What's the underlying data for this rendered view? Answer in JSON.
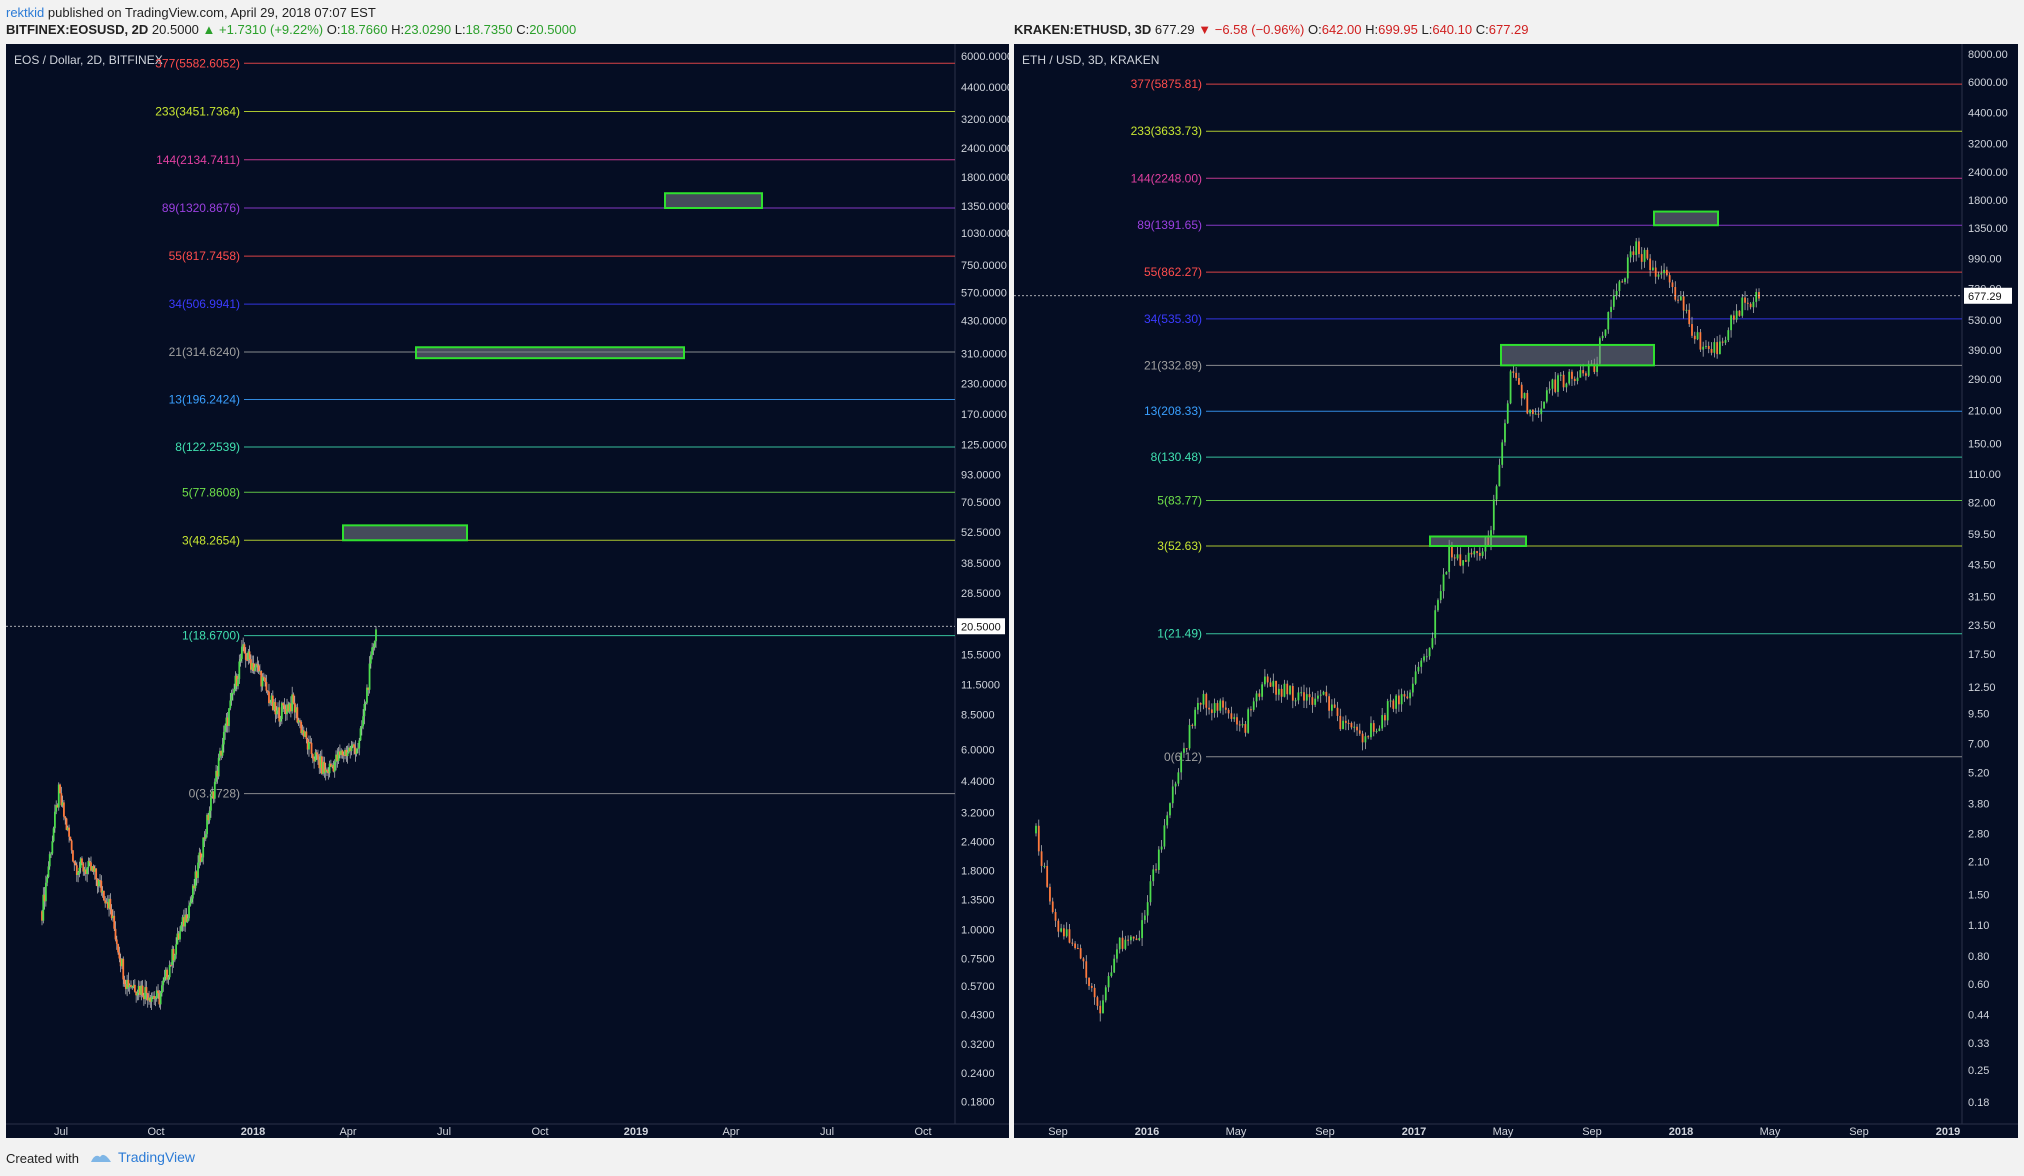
{
  "header": {
    "user": "rektkid",
    "published": " published on TradingView.com, April 29, 2018 07:07 EST",
    "left": {
      "symbol": "BITFINEX:EOSUSD, 2D",
      "price": "20.5000",
      "change": "▲ +1.7310 (+9.22%)",
      "o_label": "O:",
      "o": "18.7660",
      "h_label": "H:",
      "h": "23.0290",
      "l_label": "L:",
      "l": "18.7350",
      "c_label": "C:",
      "c": "20.5000"
    },
    "right": {
      "symbol": "KRAKEN:ETHUSD, 3D",
      "price": "677.29",
      "change": "▼ −6.58 (−0.96%)",
      "o_label": "O:",
      "o": "642.00",
      "h_label": "H:",
      "h": "699.95",
      "l_label": "L:",
      "l": "640.10",
      "c_label": "C:",
      "c": "677.29"
    }
  },
  "footer": {
    "created": "Created with",
    "brand": "TradingView"
  },
  "colors": {
    "background": "#050d23",
    "up": "#4ddc4d",
    "down": "#ff7a3d",
    "box_border": "#2fe02f",
    "box_fill": "#7a7f8a"
  },
  "chart_data": [
    {
      "type": "candlestick",
      "title": "EOS / Dollar, 2D, BITFINEX",
      "scale": "log",
      "ylim": [
        0.15,
        6500
      ],
      "last_price": "20.5000",
      "y_ticks": [
        "6000.0000",
        "4400.0000",
        "3200.0000",
        "2400.0000",
        "1800.0000",
        "1350.0000",
        "1030.0000",
        "750.0000",
        "570.0000",
        "430.0000",
        "310.0000",
        "230.0000",
        "170.0000",
        "125.0000",
        "93.0000",
        "70.5000",
        "52.5000",
        "38.5000",
        "28.5000",
        "20.5000",
        "15.5000",
        "11.5000",
        "8.5000",
        "6.0000",
        "4.4000",
        "3.2000",
        "2.4000",
        "1.8000",
        "1.3500",
        "1.0000",
        "0.7500",
        "0.5700",
        "0.4300",
        "0.3200",
        "0.2400",
        "0.1800"
      ],
      "x_ticks": [
        "Jul",
        "Oct",
        "2018",
        "Apr",
        "Jul",
        "Oct",
        "2019",
        "Apr",
        "Jul",
        "Oct"
      ],
      "fib_levels": [
        {
          "label": "377(5582.6052)",
          "value": 5582.6052,
          "color": "#ff4d4d"
        },
        {
          "label": "233(3451.7364)",
          "value": 3451.7364,
          "color": "#c8e632"
        },
        {
          "label": "144(2134.7411)",
          "value": 2134.7411,
          "color": "#e040a0"
        },
        {
          "label": "89(1320.8676)",
          "value": 1320.8676,
          "color": "#9b40e0"
        },
        {
          "label": "55(817.7458)",
          "value": 817.7458,
          "color": "#ff4d4d"
        },
        {
          "label": "34(506.9941)",
          "value": 506.9941,
          "color": "#3b3bff"
        },
        {
          "label": "21(314.6240)",
          "value": 314.624,
          "color": "#a0a0a0"
        },
        {
          "label": "13(196.2424)",
          "value": 196.2424,
          "color": "#3aa0ff"
        },
        {
          "label": "8(122.2539)",
          "value": 122.2539,
          "color": "#40e0b0"
        },
        {
          "label": "5(77.8608)",
          "value": 77.8608,
          "color": "#6fe04a"
        },
        {
          "label": "3(48.2654)",
          "value": 48.2654,
          "color": "#c8e632"
        },
        {
          "label": "1(18.6700)",
          "value": 18.67,
          "color": "#40e0b0"
        },
        {
          "label": "0(3.8728)",
          "value": 3.8728,
          "color": "#a0a0a0"
        }
      ],
      "boxes": [
        {
          "from": "2018-05",
          "to": "2018-08",
          "low": 48.27,
          "high": 56
        },
        {
          "from": "2018-07",
          "to": "2019-01",
          "low": 296,
          "high": 330
        },
        {
          "from": "2019-02",
          "to": "2019-04",
          "low": 1320.87,
          "high": 1530
        }
      ],
      "series": [
        {
          "values": [
            1.2,
            3.9,
            1.9,
            1.8,
            1.3,
            0.6,
            0.55,
            0.5,
            0.85,
            1.4,
            3.2,
            7.5,
            16,
            13,
            8.5,
            9.6,
            6,
            4.8,
            5.8,
            6.3,
            20.5
          ]
        }
      ]
    },
    {
      "type": "candlestick",
      "title": "ETH / USD, 3D, KRAKEN",
      "scale": "log",
      "ylim": [
        0.15,
        8500
      ],
      "last_price": "677.29",
      "y_ticks": [
        "8000.00",
        "6000.00",
        "4400.00",
        "3200.00",
        "2400.00",
        "1800.00",
        "1350.00",
        "990.00",
        "730.00",
        "530.00",
        "390.00",
        "290.00",
        "210.00",
        "150.00",
        "110.00",
        "82.00",
        "59.50",
        "43.50",
        "31.50",
        "23.50",
        "17.50",
        "12.50",
        "9.50",
        "7.00",
        "5.20",
        "3.80",
        "2.80",
        "2.10",
        "1.50",
        "1.10",
        "0.80",
        "0.60",
        "0.44",
        "0.33",
        "0.25",
        "0.18"
      ],
      "x_ticks": [
        "Sep",
        "2016",
        "May",
        "Sep",
        "2017",
        "May",
        "Sep",
        "2018",
        "May",
        "Sep",
        "2019"
      ],
      "fib_levels": [
        {
          "label": "377(5875.81)",
          "value": 5875.81,
          "color": "#ff4d4d"
        },
        {
          "label": "233(3633.73)",
          "value": 3633.73,
          "color": "#c8e632"
        },
        {
          "label": "144(2248.00)",
          "value": 2248.0,
          "color": "#e040a0"
        },
        {
          "label": "89(1391.65)",
          "value": 1391.65,
          "color": "#9b40e0"
        },
        {
          "label": "55(862.27)",
          "value": 862.27,
          "color": "#ff4d4d"
        },
        {
          "label": "34(535.30)",
          "value": 535.3,
          "color": "#3b3bff"
        },
        {
          "label": "21(332.89)",
          "value": 332.89,
          "color": "#a0a0a0"
        },
        {
          "label": "13(208.33)",
          "value": 208.33,
          "color": "#3aa0ff"
        },
        {
          "label": "8(130.48)",
          "value": 130.48,
          "color": "#40e0b0"
        },
        {
          "label": "5(83.77)",
          "value": 83.77,
          "color": "#6fe04a"
        },
        {
          "label": "3(52.63)",
          "value": 52.63,
          "color": "#c8e632"
        },
        {
          "label": "1(21.49)",
          "value": 21.49,
          "color": "#40e0b0"
        },
        {
          "label": "0(6.12)",
          "value": 6.12,
          "color": "#a0a0a0"
        }
      ],
      "boxes": [
        {
          "from": "2017-03",
          "to": "2017-06",
          "low": 52.63,
          "high": 58
        },
        {
          "from": "2017-06",
          "to": "2017-11",
          "low": 332.89,
          "high": 410
        },
        {
          "from": "2017-12",
          "to": "2018-02",
          "low": 1391.65,
          "high": 1600
        }
      ],
      "series": [
        {
          "values": [
            2.8,
            1.1,
            0.9,
            0.45,
            0.9,
            0.95,
            2.5,
            6,
            11,
            10,
            8,
            13,
            12,
            11,
            11,
            8,
            7.5,
            10,
            12,
            18,
            50,
            45,
            60,
            300,
            200,
            270,
            300,
            320,
            700,
            1100,
            900,
            700,
            430,
            390,
            600,
            677.29
          ]
        }
      ]
    }
  ]
}
